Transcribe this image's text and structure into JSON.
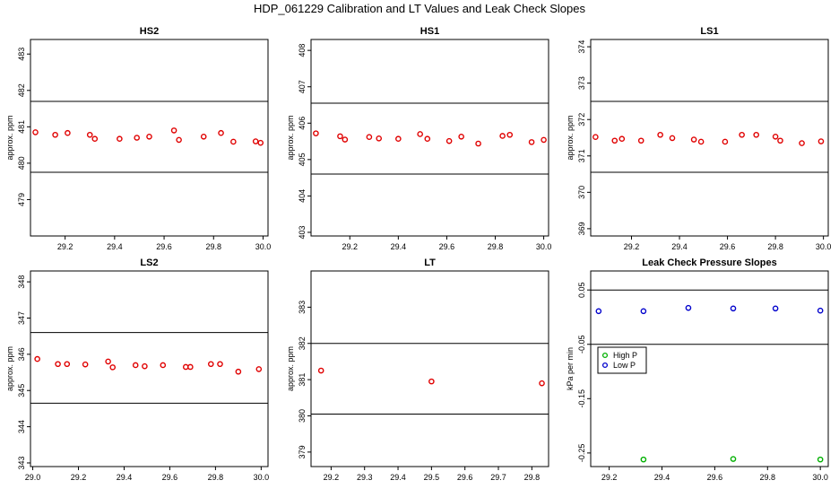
{
  "page_title": "HDP_061229  Calibration and LT Values and Leak Check Slopes",
  "colors": {
    "red_series": "#e00000",
    "green_series": "#00b000",
    "blue_series": "#0000cc",
    "frame": "#000000"
  },
  "chart_data": [
    {
      "type": "scatter",
      "title": "HS2",
      "ylabel": "approx. ppm",
      "xlim": [
        29.06,
        30.02
      ],
      "ylim": [
        478.0,
        483.4
      ],
      "xticks": [
        "29.2",
        "29.4",
        "29.6",
        "29.8",
        "30.0"
      ],
      "yticks": [
        "479",
        "480",
        "481",
        "482",
        "483"
      ],
      "hlines": [
        481.7,
        479.75
      ],
      "series": [
        {
          "color": "red",
          "x": [
            29.08,
            29.16,
            29.21,
            29.3,
            29.32,
            29.42,
            29.49,
            29.54,
            29.64,
            29.66,
            29.76,
            29.83,
            29.88,
            29.97,
            29.99
          ],
          "y": [
            480.85,
            480.78,
            480.83,
            480.78,
            480.67,
            480.67,
            480.7,
            480.73,
            480.9,
            480.64,
            480.73,
            480.83,
            480.59,
            480.6,
            480.56
          ]
        }
      ]
    },
    {
      "type": "scatter",
      "title": "HS1",
      "ylabel": "approx. ppm",
      "xlim": [
        29.04,
        30.02
      ],
      "ylim": [
        402.9,
        408.3
      ],
      "xticks": [
        "29.2",
        "29.4",
        "29.6",
        "29.8",
        "30.0"
      ],
      "yticks": [
        "403",
        "404",
        "405",
        "406",
        "407",
        "408"
      ],
      "hlines": [
        406.55,
        404.6
      ],
      "series": [
        {
          "color": "red",
          "x": [
            29.06,
            29.16,
            29.18,
            29.28,
            29.32,
            29.4,
            29.49,
            29.52,
            29.61,
            29.66,
            29.73,
            29.83,
            29.86,
            29.95,
            30.0
          ],
          "y": [
            405.72,
            405.64,
            405.55,
            405.62,
            405.58,
            405.57,
            405.7,
            405.57,
            405.51,
            405.63,
            405.44,
            405.65,
            405.68,
            405.48,
            405.54
          ]
        }
      ]
    },
    {
      "type": "scatter",
      "title": "LS1",
      "ylabel": "approx. ppm",
      "xlim": [
        29.03,
        30.02
      ],
      "ylim": [
        368.8,
        374.2
      ],
      "xticks": [
        "29.2",
        "29.4",
        "29.6",
        "29.8",
        "30.0"
      ],
      "yticks": [
        "369",
        "370",
        "371",
        "372",
        "373",
        "374"
      ],
      "hlines": [
        372.5,
        370.55
      ],
      "series": [
        {
          "color": "red",
          "x": [
            29.05,
            29.13,
            29.16,
            29.24,
            29.32,
            29.37,
            29.46,
            29.49,
            29.59,
            29.66,
            29.72,
            29.8,
            29.82,
            29.91,
            29.99
          ],
          "y": [
            371.52,
            371.42,
            371.47,
            371.42,
            371.58,
            371.49,
            371.45,
            371.39,
            371.39,
            371.58,
            371.58,
            371.53,
            371.42,
            371.35,
            371.4
          ]
        }
      ]
    },
    {
      "type": "scatter",
      "title": "LS2",
      "ylabel": "approx. ppm",
      "xlim": [
        28.99,
        30.03
      ],
      "ylim": [
        342.9,
        348.3
      ],
      "xticks": [
        "29.0",
        "29.2",
        "29.4",
        "29.6",
        "29.8",
        "30.0"
      ],
      "yticks": [
        "343",
        "344",
        "345",
        "346",
        "347",
        "348"
      ],
      "hlines": [
        346.6,
        344.65
      ],
      "series": [
        {
          "color": "red",
          "x": [
            29.02,
            29.11,
            29.15,
            29.23,
            29.33,
            29.35,
            29.45,
            29.49,
            29.57,
            29.67,
            29.69,
            29.78,
            29.82,
            29.9,
            29.99
          ],
          "y": [
            345.87,
            345.73,
            345.73,
            345.72,
            345.8,
            345.64,
            345.7,
            345.67,
            345.7,
            345.65,
            345.65,
            345.73,
            345.73,
            345.52,
            345.59
          ]
        }
      ]
    },
    {
      "type": "scatter",
      "title": "LT",
      "ylabel": "approx. ppm",
      "xlim": [
        29.14,
        29.85
      ],
      "ylim": [
        378.6,
        384.0
      ],
      "xticks": [
        "29.2",
        "29.3",
        "29.4",
        "29.5",
        "29.6",
        "29.7",
        "29.8"
      ],
      "yticks": [
        "379",
        "380",
        "381",
        "382",
        "383"
      ],
      "hlines": [
        382.0,
        380.05
      ],
      "series": [
        {
          "color": "red",
          "x": [
            29.17,
            29.5,
            29.83
          ],
          "y": [
            381.25,
            380.95,
            380.9
          ]
        }
      ]
    },
    {
      "type": "scatter",
      "title": "Leak Check Pressure Slopes",
      "ylabel": "kPa per min",
      "xlim": [
        29.13,
        30.03
      ],
      "ylim": [
        -0.275,
        0.085
      ],
      "xticks": [
        "29.2",
        "29.4",
        "29.6",
        "29.8",
        "30.0"
      ],
      "yticks": [
        "-0.25",
        "-0.15",
        "-0.05",
        "0.05"
      ],
      "hlines": [
        0.05,
        -0.05
      ],
      "legend": {
        "position": "upper-left",
        "entries": [
          "High P",
          "Low P"
        ]
      },
      "series": [
        {
          "name": "High P",
          "color": "green",
          "x": [
            29.33,
            29.67,
            30.0
          ],
          "y": [
            -0.262,
            -0.261,
            -0.262
          ]
        },
        {
          "name": "Low P",
          "color": "blue",
          "x": [
            29.16,
            29.33,
            29.5,
            29.67,
            29.83,
            30.0
          ],
          "y": [
            0.011,
            0.011,
            0.017,
            0.016,
            0.016,
            0.012
          ]
        }
      ]
    }
  ]
}
